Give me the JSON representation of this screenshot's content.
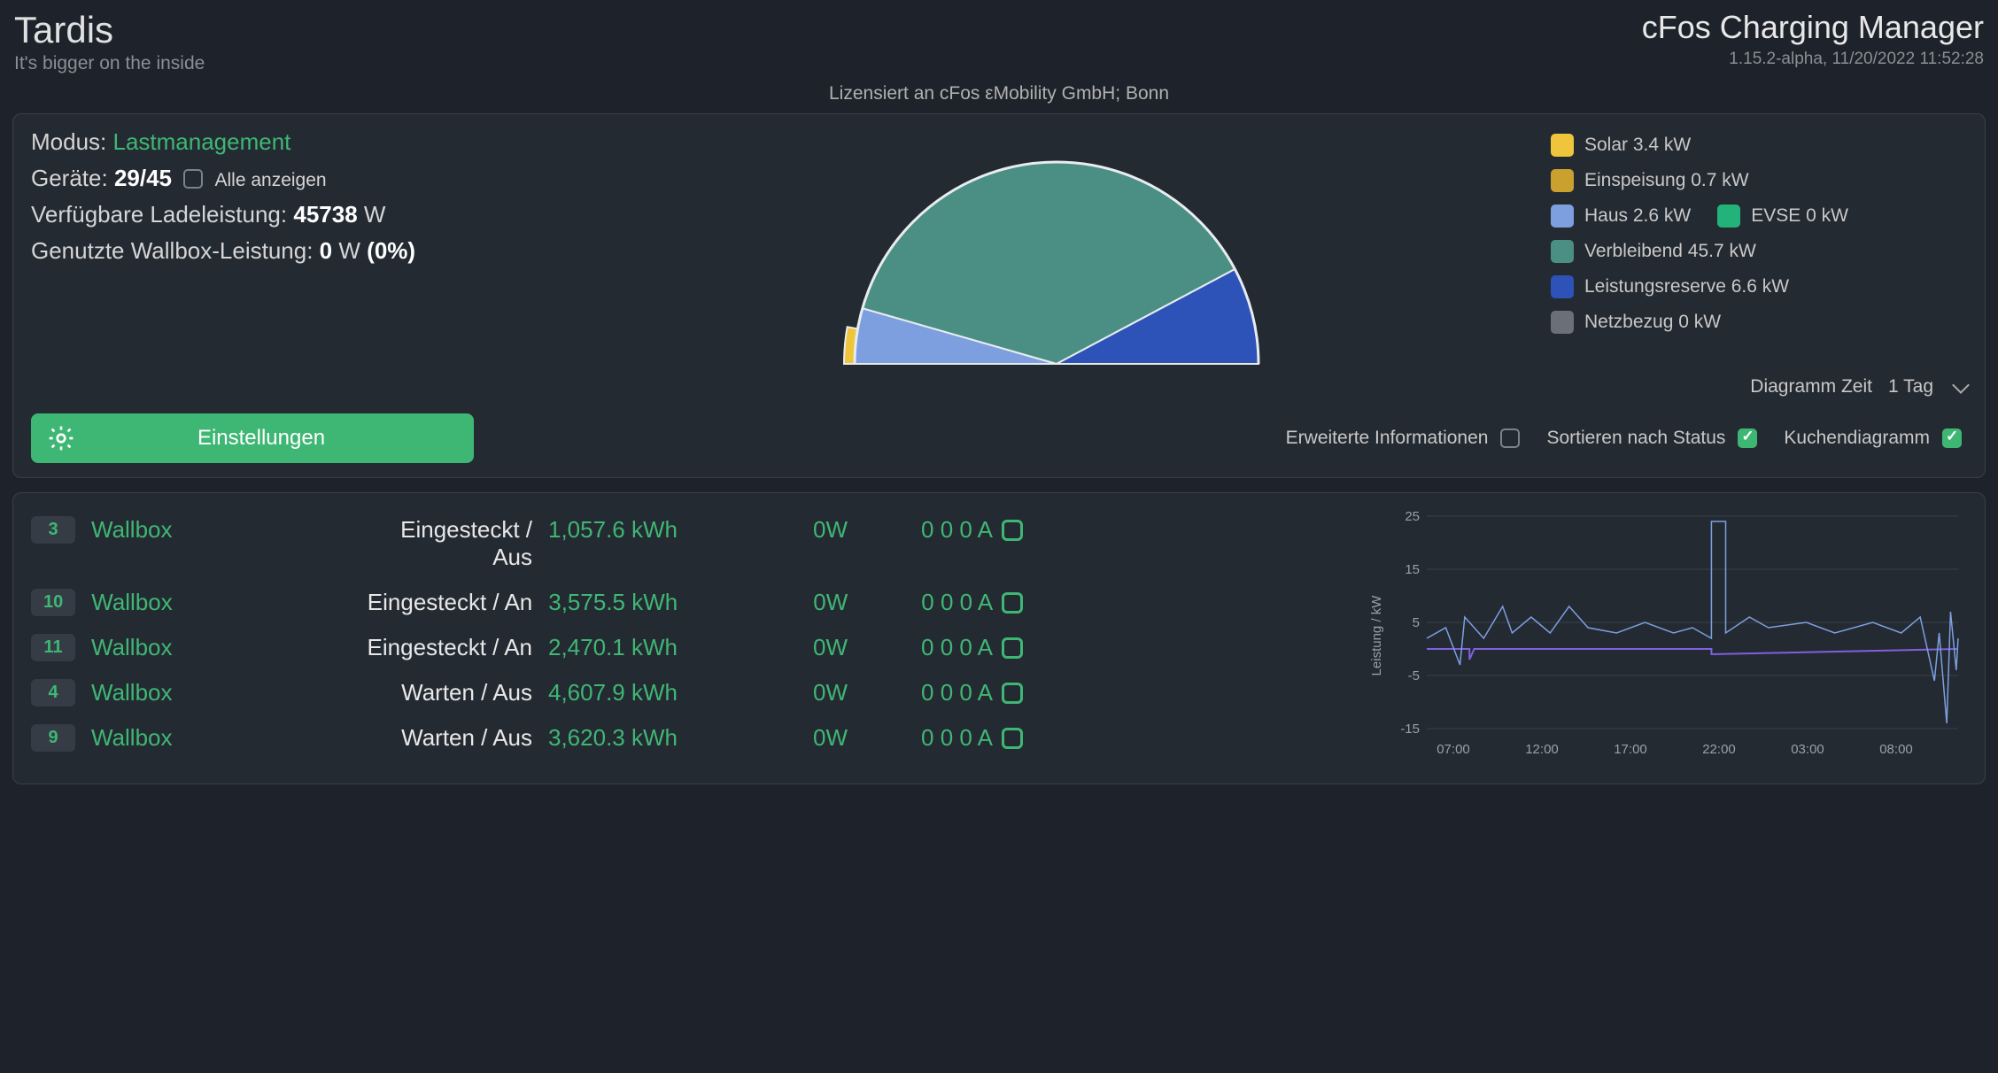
{
  "header": {
    "title": "Tardis",
    "subtitle": "It's bigger on the inside",
    "app_name": "cFos Charging Manager",
    "version_line": "1.15.2-alpha, 11/20/2022 11:52:28",
    "license_line": "Lizensiert an cFos εMobility GmbH; Bonn"
  },
  "info": {
    "mode_label": "Modus:",
    "mode_value": "Lastmanagement",
    "devices_label": "Geräte:",
    "devices_value": "29/45",
    "show_all_label": "Alle anzeigen",
    "avail_label": "Verfügbare Ladeleistung:",
    "avail_value": "45738",
    "avail_unit": "W",
    "used_label": "Genutzte Wallbox-Leistung:",
    "used_value": "0",
    "used_unit": "W",
    "used_pct": "(0%)"
  },
  "semi_chart": {
    "type": "semi-pie",
    "background_color": "#242a32",
    "stroke": "#e8ecef",
    "segments": [
      {
        "name": "solar_bottom",
        "color": "#efc63b",
        "start_deg": 180,
        "end_deg": 190,
        "r_outer": 240,
        "r_inner": 0
      },
      {
        "name": "einspeisung",
        "color": "#caa12e",
        "start_deg": 180,
        "end_deg": 186,
        "r_outer": 228,
        "r_inner": 0
      },
      {
        "name": "haus",
        "color": "#7d9fe0",
        "start_deg": 180,
        "end_deg": 196,
        "r_outer": 228,
        "r_inner": 0,
        "z": 2
      },
      {
        "name": "verbleibend",
        "color": "#4b8f84",
        "start_deg": 196,
        "end_deg": 332,
        "r_outer": 228,
        "r_inner": 0,
        "z": 1
      },
      {
        "name": "reserve",
        "color": "#2d52b8",
        "start_deg": 332,
        "end_deg": 360,
        "r_outer": 228,
        "r_inner": 0,
        "z": 1
      }
    ]
  },
  "legend": {
    "items": [
      {
        "color": "#efc63b",
        "label": "Solar 3.4 kW"
      },
      {
        "color": "#caa12e",
        "label": "Einspeisung 0.7 kW"
      },
      {
        "color": "#7d9fe0",
        "label": "Haus 2.6 kW",
        "pair_color": "#23b37a",
        "pair_label": "EVSE 0 kW"
      },
      {
        "color": "#4b8f84",
        "label": "Verbleibend 45.7 kW"
      },
      {
        "color": "#2d52b8",
        "label": "Leistungsreserve 6.6 kW"
      },
      {
        "color": "#6b7078",
        "label": "Netzbezug 0 kW"
      }
    ]
  },
  "controls": {
    "settings_label": "Einstellungen",
    "ext_info_label": "Erweiterte Informationen",
    "sort_status_label": "Sortieren nach Status",
    "pie_label": "Kuchendiagramm",
    "time_label": "Diagramm Zeit",
    "time_value": "1 Tag",
    "ext_info_checked": false,
    "sort_status_checked": true,
    "pie_checked": true
  },
  "devices": [
    {
      "id": "3",
      "name": "Wallbox",
      "status": "Eingesteckt / Aus",
      "kwh": "1,057.6 kWh",
      "w": "0W",
      "amp": "0 0 0 A"
    },
    {
      "id": "10",
      "name": "Wallbox",
      "status": "Eingesteckt / An",
      "kwh": "3,575.5 kWh",
      "w": "0W",
      "amp": "0 0 0 A"
    },
    {
      "id": "11",
      "name": "Wallbox",
      "status": "Eingesteckt / An",
      "kwh": "2,470.1 kWh",
      "w": "0W",
      "amp": "0 0 0 A"
    },
    {
      "id": "4",
      "name": "Wallbox",
      "status": "Warten / Aus",
      "kwh": "4,607.9 kWh",
      "w": "0W",
      "amp": "0 0 0 A"
    },
    {
      "id": "9",
      "name": "Wallbox",
      "status": "Warten / Aus",
      "kwh": "3,620.3 kWh",
      "w": "0W",
      "amp": "0 0 0 A"
    }
  ],
  "mini_chart": {
    "type": "line",
    "y_label": "Leistung / kW",
    "ylim": [
      -15,
      25
    ],
    "yticks": [
      -15,
      -5,
      5,
      15,
      25
    ],
    "xticks": [
      "07:00",
      "12:00",
      "17:00",
      "22:00",
      "03:00",
      "08:00"
    ],
    "grid_color": "#3a4048",
    "axis_color": "#9aa0a8",
    "label_fontsize": 15,
    "series": [
      {
        "name": "purple",
        "color": "#8060e0",
        "width": 2,
        "points": [
          [
            0,
            0
          ],
          [
            45,
            0
          ],
          [
            45,
            -2
          ],
          [
            50,
            0
          ],
          [
            300,
            0
          ],
          [
            300,
            -1
          ],
          [
            560,
            0
          ],
          [
            560,
            0
          ]
        ]
      },
      {
        "name": "blue",
        "color": "#7d9fe0",
        "width": 1.5,
        "points": [
          [
            0,
            2
          ],
          [
            20,
            4
          ],
          [
            35,
            -3
          ],
          [
            40,
            6
          ],
          [
            60,
            2
          ],
          [
            80,
            8
          ],
          [
            90,
            3
          ],
          [
            110,
            6
          ],
          [
            130,
            3
          ],
          [
            150,
            8
          ],
          [
            170,
            4
          ],
          [
            200,
            3
          ],
          [
            230,
            5
          ],
          [
            260,
            3
          ],
          [
            280,
            4
          ],
          [
            300,
            2
          ],
          [
            300,
            24
          ],
          [
            315,
            24
          ],
          [
            315,
            3
          ],
          [
            340,
            6
          ],
          [
            360,
            4
          ],
          [
            400,
            5
          ],
          [
            430,
            3
          ],
          [
            470,
            5
          ],
          [
            500,
            3
          ],
          [
            520,
            6
          ],
          [
            535,
            -6
          ],
          [
            540,
            3
          ],
          [
            548,
            -14
          ],
          [
            552,
            7
          ],
          [
            558,
            -4
          ],
          [
            560,
            2
          ]
        ]
      }
    ]
  },
  "colors": {
    "bg": "#1e232b",
    "panel": "#242a32",
    "border": "#3a4048",
    "green": "#3fb774",
    "text": "#d0d0d0",
    "muted": "#8a8f96"
  }
}
